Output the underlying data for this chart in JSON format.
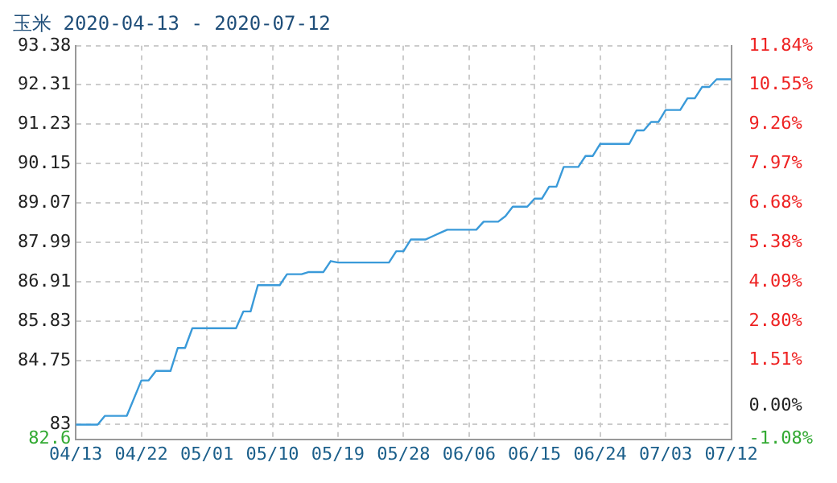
{
  "chart_data": {
    "type": "line",
    "title": "玉米 2020-04-13 - 2020-07-12",
    "x": [
      "2020-04-13",
      "2020-04-16",
      "2020-04-17",
      "2020-04-20",
      "2020-04-22",
      "2020-04-23",
      "2020-04-24",
      "2020-04-26",
      "2020-04-27",
      "2020-04-28",
      "2020-04-29",
      "2020-05-05",
      "2020-05-06",
      "2020-05-07",
      "2020-05-08",
      "2020-05-11",
      "2020-05-12",
      "2020-05-14",
      "2020-05-15",
      "2020-05-17",
      "2020-05-18",
      "2020-05-19",
      "2020-05-26",
      "2020-05-27",
      "2020-05-28",
      "2020-05-29",
      "2020-05-31",
      "2020-06-01",
      "2020-06-02",
      "2020-06-03",
      "2020-06-07",
      "2020-06-08",
      "2020-06-10",
      "2020-06-11",
      "2020-06-12",
      "2020-06-14",
      "2020-06-15",
      "2020-06-16",
      "2020-06-17",
      "2020-06-18",
      "2020-06-19",
      "2020-06-21",
      "2020-06-22",
      "2020-06-23",
      "2020-06-24",
      "2020-06-28",
      "2020-06-29",
      "2020-06-30",
      "2020-07-01",
      "2020-07-02",
      "2020-07-03",
      "2020-07-05",
      "2020-07-06",
      "2020-07-07",
      "2020-07-08",
      "2020-07-09",
      "2020-07-10",
      "2020-07-12"
    ],
    "series": [
      {
        "color": "#3a9ad9",
        "values": [
          83.0,
          83.0,
          83.24,
          83.24,
          84.21,
          84.21,
          84.47,
          84.47,
          85.1,
          85.1,
          85.64,
          85.64,
          86.1,
          86.1,
          86.82,
          86.82,
          87.12,
          87.12,
          87.18,
          87.18,
          87.48,
          87.44,
          87.44,
          87.75,
          87.75,
          88.07,
          88.07,
          88.16,
          88.25,
          88.34,
          88.34,
          88.56,
          88.56,
          88.71,
          88.97,
          88.97,
          89.19,
          89.19,
          89.52,
          89.52,
          90.06,
          90.06,
          90.36,
          90.36,
          90.69,
          90.69,
          91.06,
          91.06,
          91.29,
          91.29,
          91.62,
          91.62,
          91.94,
          91.94,
          92.25,
          92.25,
          92.46,
          92.46
        ]
      }
    ],
    "xlim": [
      "2020-04-13",
      "2020-07-12"
    ],
    "xticks": [
      {
        "value": "2020-04-13",
        "label": "04/13"
      },
      {
        "value": "2020-04-22",
        "label": "04/22"
      },
      {
        "value": "2020-05-01",
        "label": "05/01"
      },
      {
        "value": "2020-05-10",
        "label": "05/10"
      },
      {
        "value": "2020-05-19",
        "label": "05/19"
      },
      {
        "value": "2020-05-28",
        "label": "05/28"
      },
      {
        "value": "2020-06-06",
        "label": "06/06"
      },
      {
        "value": "2020-06-15",
        "label": "06/15"
      },
      {
        "value": "2020-06-24",
        "label": "06/24"
      },
      {
        "value": "2020-07-03",
        "label": "07/03"
      },
      {
        "value": "2020-07-12",
        "label": "07/12"
      }
    ],
    "ylim": [
      82.6,
      93.38
    ],
    "yticks": [
      82.6,
      83,
      84.75,
      85.83,
      86.91,
      87.99,
      89.07,
      90.15,
      91.23,
      92.31,
      93.38
    ],
    "y2lim": [
      -1.08,
      11.84
    ],
    "y2ticks": [
      {
        "value": -1.08,
        "label": "-1.08%"
      },
      {
        "value": 0,
        "label": "0.00%"
      },
      {
        "value": 1.51,
        "label": "1.51%"
      },
      {
        "value": 2.8,
        "label": "2.80%"
      },
      {
        "value": 4.09,
        "label": "4.09%"
      },
      {
        "value": 5.38,
        "label": "5.38%"
      },
      {
        "value": 6.68,
        "label": "6.68%"
      },
      {
        "value": 7.97,
        "label": "7.97%"
      },
      {
        "value": 9.26,
        "label": "9.26%"
      },
      {
        "value": 10.55,
        "label": "10.55%"
      },
      {
        "value": 11.84,
        "label": "11.84%"
      }
    ],
    "grid": true,
    "legend": false,
    "marker": "none",
    "line_style": "solid"
  }
}
